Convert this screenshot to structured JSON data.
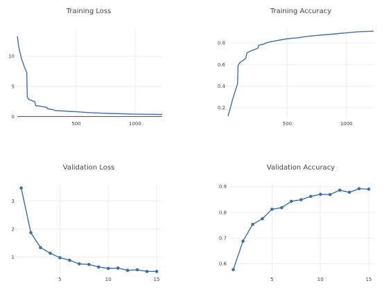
{
  "chart_data": [
    {
      "type": "line",
      "title": "Training Loss",
      "xlabel": "",
      "ylabel": "",
      "xlim": [
        0,
        1230
      ],
      "ylim": [
        -0.3,
        14.5
      ],
      "xticks": [
        500,
        1000
      ],
      "yticks": [
        0,
        5,
        10
      ],
      "zeroline": true,
      "grid": true,
      "markers": false,
      "series": [
        {
          "x": [
            0,
            10,
            20,
            40,
            60,
            80,
            85,
            100,
            130,
            150,
            155,
            200,
            250,
            255,
            300,
            320,
            400,
            450,
            500,
            550,
            600,
            700,
            800,
            900,
            1000,
            1100,
            1230
          ],
          "y": [
            13.3,
            11.8,
            10.8,
            9.3,
            8.2,
            7.3,
            3.2,
            2.8,
            2.6,
            2.4,
            1.8,
            1.7,
            1.5,
            1.3,
            1.15,
            1.0,
            0.9,
            0.85,
            0.8,
            0.72,
            0.65,
            0.57,
            0.5,
            0.45,
            0.4,
            0.37,
            0.33
          ]
        }
      ]
    },
    {
      "type": "line",
      "title": "Training Accuracy",
      "xlabel": "",
      "ylabel": "",
      "xlim": [
        0,
        1230
      ],
      "ylim": [
        0.1,
        0.93
      ],
      "xticks": [
        500,
        1000
      ],
      "yticks": [
        0.2,
        0.4,
        0.6,
        0.8
      ],
      "grid": true,
      "markers": false,
      "series": [
        {
          "x": [
            0,
            20,
            40,
            60,
            80,
            85,
            100,
            130,
            150,
            160,
            200,
            250,
            260,
            300,
            320,
            350,
            400,
            450,
            500,
            550,
            600,
            650,
            700,
            800,
            900,
            1000,
            1100,
            1230
          ],
          "y": [
            0.12,
            0.2,
            0.28,
            0.35,
            0.42,
            0.59,
            0.62,
            0.64,
            0.66,
            0.71,
            0.73,
            0.75,
            0.78,
            0.79,
            0.8,
            0.81,
            0.82,
            0.83,
            0.84,
            0.845,
            0.85,
            0.86,
            0.865,
            0.875,
            0.885,
            0.895,
            0.905,
            0.91
          ]
        }
      ]
    },
    {
      "type": "line",
      "title": "Validation Loss",
      "xlabel": "",
      "ylabel": "",
      "xlim": [
        0.6,
        15.5
      ],
      "ylim": [
        0.4,
        3.6
      ],
      "xticks": [
        5,
        10,
        15
      ],
      "yticks": [
        1,
        2,
        3
      ],
      "grid": true,
      "markers": true,
      "series": [
        {
          "x": [
            1,
            2,
            3,
            4,
            5,
            6,
            7,
            8,
            9,
            10,
            11,
            12,
            13,
            14,
            15
          ],
          "y": [
            3.46,
            1.87,
            1.34,
            1.14,
            0.98,
            0.89,
            0.76,
            0.74,
            0.65,
            0.6,
            0.61,
            0.53,
            0.55,
            0.49,
            0.49
          ]
        }
      ]
    },
    {
      "type": "line",
      "title": "Validation Accuracy",
      "xlabel": "",
      "ylabel": "",
      "xlim": [
        0.6,
        15.5
      ],
      "ylim": [
        0.56,
        0.91
      ],
      "xticks": [
        5,
        10,
        15
      ],
      "yticks": [
        0.6,
        0.7,
        0.8,
        0.9
      ],
      "grid": true,
      "markers": true,
      "series": [
        {
          "x": [
            1,
            2,
            3,
            4,
            5,
            6,
            7,
            8,
            9,
            10,
            11,
            12,
            13,
            14,
            15
          ],
          "y": [
            0.577,
            0.688,
            0.753,
            0.775,
            0.812,
            0.818,
            0.843,
            0.849,
            0.862,
            0.87,
            0.869,
            0.886,
            0.878,
            0.892,
            0.89
          ]
        }
      ]
    }
  ]
}
